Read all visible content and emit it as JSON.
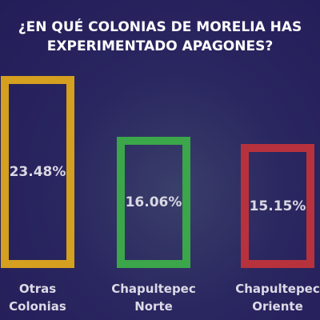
{
  "chart_data": {
    "type": "bar",
    "title": "¿EN QUÉ COLONIAS DE MORELIA HAS EXPERIMENTADO APAGONES?",
    "categories": [
      "Otras Colonias",
      "Chapultepec Norte",
      "Chapultepec Oriente"
    ],
    "values": [
      23.48,
      16.06,
      15.15
    ],
    "value_labels": [
      "23.48%",
      "16.06%",
      "15.15%"
    ],
    "colors": [
      "#d59f1f",
      "#3ba64a",
      "#b7323d"
    ]
  }
}
